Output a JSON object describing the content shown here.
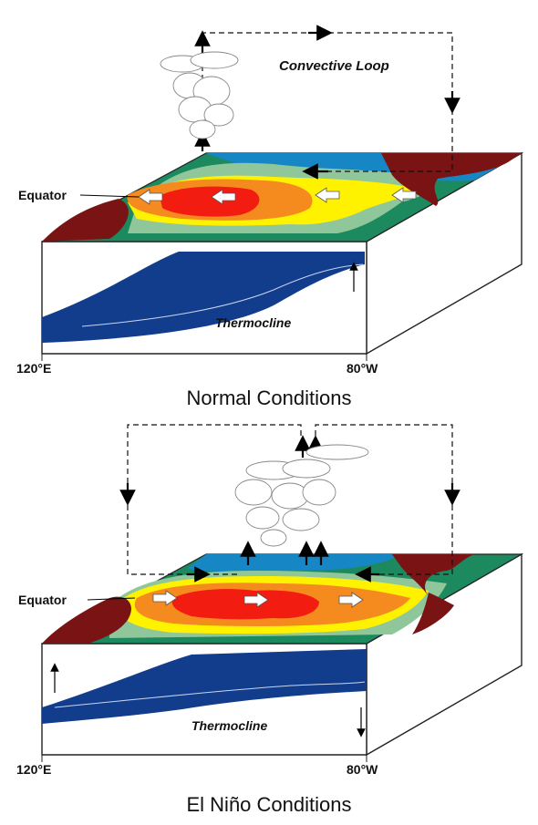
{
  "diagrams": [
    {
      "caption": "Normal Conditions",
      "loop_label": "Convective Loop",
      "equator_label": "Equator",
      "thermocline_label": "Thermocline",
      "west_label": "120°E",
      "east_label": "80°W"
    },
    {
      "caption": "El Niño Conditions",
      "equator_label": "Equator",
      "thermocline_label": "Thermocline",
      "west_label": "120°E",
      "east_label": "80°W"
    }
  ],
  "colors": {
    "warm_core": "#f21c10",
    "warm": "#f58a1f",
    "mid": "#fef200",
    "cool": "#8fc79b",
    "cooler": "#1c8a5e",
    "cold": "#1686c4",
    "land": "#7a1414",
    "deep_water": "#123c8c"
  }
}
